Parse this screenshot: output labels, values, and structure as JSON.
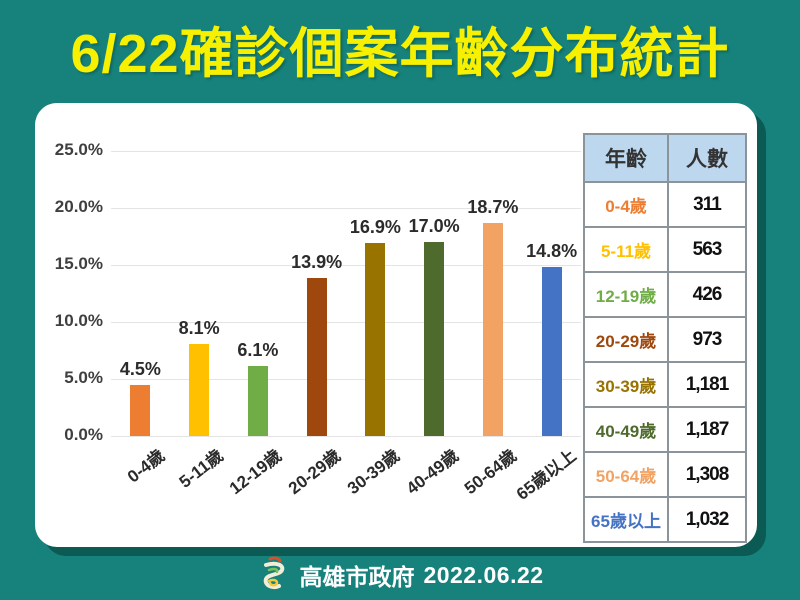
{
  "title": "6/22確診個案年齡分布統計",
  "footer": {
    "org": "高雄市政府",
    "date": "2022.06.22"
  },
  "colors": {
    "background": "#17827C",
    "card_shadow": "#0B5A54",
    "title_yellow": "#F7F000",
    "table_header_bg": "#BDD7EE",
    "gridline": "#E4E4E4"
  },
  "chart_data": {
    "type": "bar",
    "title": "6/22確診個案年齡分布統計",
    "categories": [
      "0-4歲",
      "5-11歲",
      "12-19歲",
      "20-29歲",
      "30-39歲",
      "40-49歲",
      "50-64歲",
      "65歲以上"
    ],
    "values": [
      4.5,
      8.1,
      6.1,
      13.9,
      16.9,
      17.0,
      18.7,
      14.8
    ],
    "value_labels": [
      "4.5%",
      "8.1%",
      "6.1%",
      "13.9%",
      "16.9%",
      "17.0%",
      "18.7%",
      "14.8%"
    ],
    "counts": [
      311,
      563,
      426,
      973,
      1181,
      1187,
      1308,
      1032
    ],
    "bar_colors": [
      "#ED7D31",
      "#FFC000",
      "#70AD47",
      "#9E480E",
      "#997300",
      "#4E6B2D",
      "#F2A263",
      "#4472C4"
    ],
    "xlabel": "",
    "ylabel": "",
    "ylim": [
      0,
      25
    ],
    "yticks_top_down": [
      "25.0%",
      "20.0%",
      "15.0%",
      "10.0%",
      "5.0%",
      "0.0%"
    ],
    "grid": true,
    "legend": "none"
  },
  "table": {
    "headers": [
      "年齡",
      "人數"
    ],
    "rows": [
      {
        "age": "0-4歲",
        "count": "311",
        "color": "#ED7D31"
      },
      {
        "age": "5-11歲",
        "count": "563",
        "color": "#FFC000"
      },
      {
        "age": "12-19歲",
        "count": "426",
        "color": "#70AD47"
      },
      {
        "age": "20-29歲",
        "count": "973",
        "color": "#9E480E"
      },
      {
        "age": "30-39歲",
        "count": "1,181",
        "color": "#997300"
      },
      {
        "age": "40-49歲",
        "count": "1,187",
        "color": "#4E6B2D"
      },
      {
        "age": "50-64歲",
        "count": "1,308",
        "color": "#F2A263"
      },
      {
        "age": "65歲以上",
        "count": "1,032",
        "color": "#4472C4"
      }
    ]
  }
}
